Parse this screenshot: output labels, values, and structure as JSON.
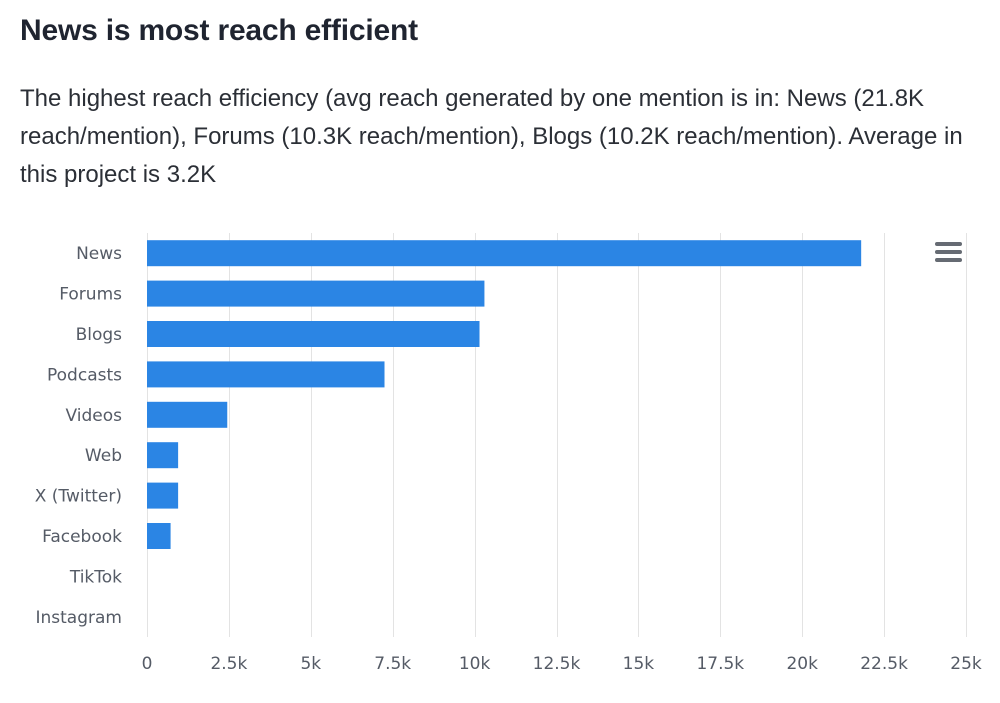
{
  "header": {
    "title": "News is most reach efficient",
    "subtitle": "The highest reach efficiency (avg reach generated by one mention is in: News (21.8K reach/mention), Forums (10.3K reach/mention), Blogs (10.2K reach/mention). Average in this project is 3.2K"
  },
  "menu": {
    "icon": "hamburger-menu-icon"
  },
  "chart_data": {
    "type": "bar",
    "orientation": "horizontal",
    "categories": [
      "News",
      "Forums",
      "Blogs",
      "Podcasts",
      "Videos",
      "Web",
      "X (Twitter)",
      "Facebook",
      "TikTok",
      "Instagram"
    ],
    "values": [
      21800,
      10300,
      10150,
      7250,
      2450,
      950,
      950,
      720,
      0,
      0
    ],
    "xlim": [
      0,
      25000
    ],
    "xticks": [
      0,
      2500,
      5000,
      7500,
      10000,
      12500,
      15000,
      17500,
      20000,
      22500,
      25000
    ],
    "xtick_labels": [
      "0",
      "2.5k",
      "5k",
      "7.5k",
      "10k",
      "12.5k",
      "15k",
      "17.5k",
      "20k",
      "22.5k",
      "25k"
    ],
    "grid": true,
    "bar_color": "#2b85e4",
    "grid_color": "#e3e3e3"
  }
}
